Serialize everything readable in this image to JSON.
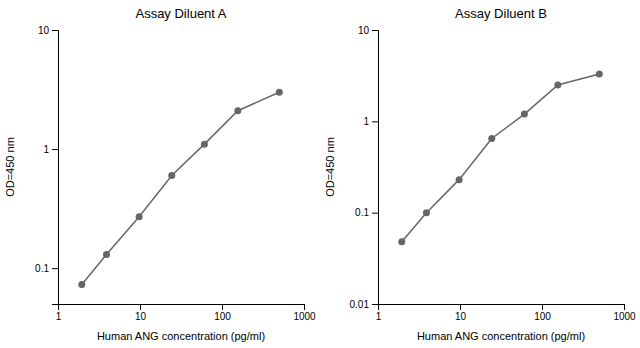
{
  "chart_data": [
    {
      "type": "line",
      "title": "Assay Diluent A",
      "x": [
        1.95,
        3.9,
        9.75,
        24.4,
        61,
        156,
        500
      ],
      "values": [
        0.073,
        0.13,
        0.27,
        0.6,
        1.1,
        2.1,
        3.0
      ],
      "xlabel": "Human ANG concentration (pg/ml)",
      "ylabel": "OD=450 nm",
      "xlim": [
        1,
        1000
      ],
      "ylim": [
        0.05,
        10
      ],
      "xticks": [
        1,
        10,
        100,
        1000
      ],
      "yticks": [
        0.1,
        1,
        10
      ],
      "log": true,
      "grid": false,
      "color": "#666666",
      "marker": "circle"
    },
    {
      "type": "line",
      "title": "Assay Diluent B",
      "x": [
        1.95,
        3.9,
        9.75,
        24.4,
        61,
        156,
        500
      ],
      "values": [
        0.048,
        0.1,
        0.23,
        0.65,
        1.2,
        2.5,
        3.3
      ],
      "xlabel": "Human ANG concentration (pg/ml)",
      "ylabel": "OD=450 nm",
      "xlim": [
        1,
        1000
      ],
      "ylim": [
        0.01,
        10
      ],
      "xticks": [
        1,
        10,
        100,
        1000
      ],
      "yticks": [
        0.01,
        0.1,
        1,
        10
      ],
      "log": true,
      "grid": false,
      "color": "#666666",
      "marker": "circle"
    }
  ]
}
